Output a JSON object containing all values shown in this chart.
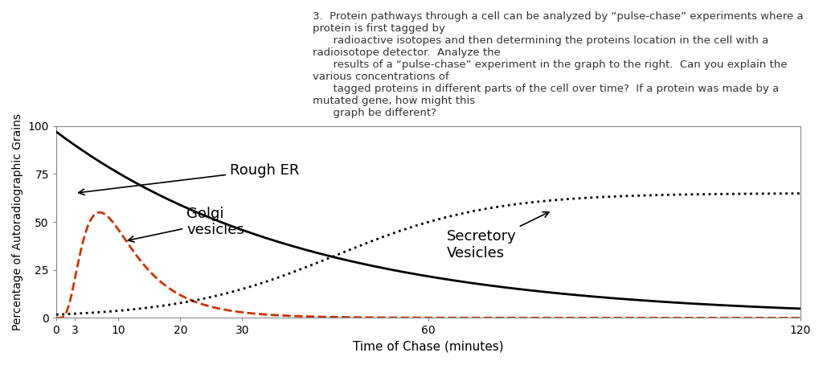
{
  "title": "",
  "xlabel": "Time of Chase (minutes)",
  "ylabel": "Percentage of Autoradiographic Grains",
  "xlim": [
    0,
    120
  ],
  "ylim": [
    0,
    100
  ],
  "xticks": [
    0,
    3,
    10,
    20,
    30,
    60,
    120
  ],
  "yticks": [
    0,
    25,
    50,
    75,
    100
  ],
  "rough_er_color": "#000000",
  "golgi_color": "#cc3300",
  "secretory_color": "#000000",
  "background_color": "#ffffff",
  "text_color": "#000000",
  "label_rough_er": "Rough ER",
  "label_golgi": "Golgi\nvesicles",
  "label_secretory": "Secretory\nVesicles",
  "figsize": [
    10.24,
    4.54
  ],
  "dpi": 100
}
